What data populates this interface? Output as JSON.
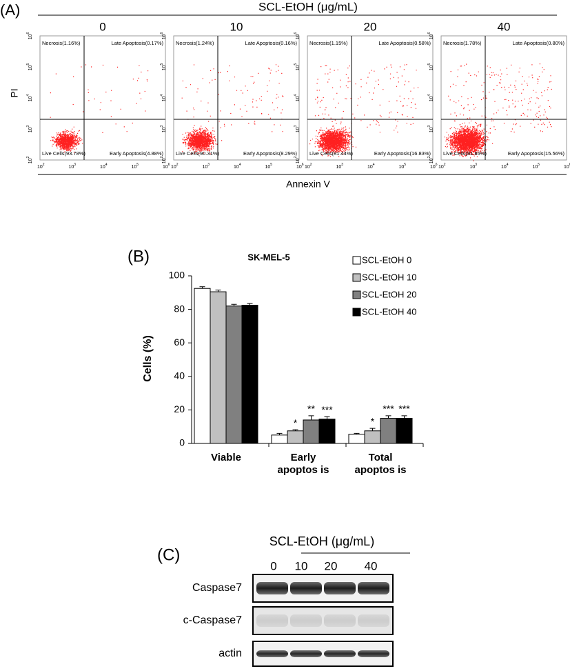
{
  "panel_a": {
    "label": "(A)",
    "header": "SCL-EtOH (μg/mL)",
    "y_axis_label": "PI",
    "x_axis_label": "Annexin V",
    "tick_base": "10",
    "tick_exponents": [
      "2",
      "3",
      "4",
      "5",
      "6"
    ],
    "plots": [
      {
        "dose": "0",
        "necrosis": "Necrosis(1.16%)",
        "late": "Late Apoptosis(0.17%)",
        "live": "Live Cells(93.78%)",
        "early": "Early Apoptosis(4.88%)"
      },
      {
        "dose": "10",
        "necrosis": "Necrosis(1.24%)",
        "late": "Late Apoptosis(0.16%)",
        "live": "Live Cells(90.31%)",
        "early": "Early Apoptosis(8.29%)"
      },
      {
        "dose": "20",
        "necrosis": "Necrosis(1.15%)",
        "late": "Late Apoptosis(0.58%)",
        "live": "Live Cells(81.44%)",
        "early": "Early Apoptosis(16.83%)"
      },
      {
        "dose": "40",
        "necrosis": "Necrosis(1.78%)",
        "late": "Late Apoptosis(0.80%)",
        "live": "Live Cells(81.86%)",
        "early": "Early Apoptosis(15.56%)"
      }
    ]
  },
  "chart_data": [
    {
      "type": "bar",
      "panel_label": "(B)",
      "title": "SK-MEL-5",
      "y_label": "Cells (%)",
      "categories": [
        "Viable",
        "Early\napoptos is",
        "Total\napoptos is"
      ],
      "ylim": [
        0,
        100
      ],
      "yticks": [
        0,
        20,
        40,
        60,
        80,
        100
      ],
      "series": [
        {
          "name": "SCL-EtOH 0",
          "color": "#ffffff",
          "values": [
            92.5,
            5,
            5.5
          ],
          "errors": [
            1,
            1,
            0.5
          ],
          "annotations": [
            null,
            null,
            null
          ]
        },
        {
          "name": "SCL-EtOH 10",
          "color": "#c0c0c0",
          "values": [
            90.5,
            7.5,
            7.5
          ],
          "errors": [
            1,
            0.7,
            1.5
          ],
          "annotations": [
            null,
            "*",
            "*"
          ]
        },
        {
          "name": "SCL-EtOH 20",
          "color": "#808080",
          "values": [
            82,
            14,
            15
          ],
          "errors": [
            1,
            2.5,
            1.5
          ],
          "annotations": [
            null,
            "**",
            "***"
          ]
        },
        {
          "name": "SCL-EtOH 40",
          "color": "#000000",
          "values": [
            82.5,
            14.5,
            15
          ],
          "errors": [
            1,
            1.5,
            1.5
          ],
          "annotations": [
            null,
            "***",
            "***"
          ]
        }
      ]
    }
  ],
  "panel_c": {
    "label": "(C)",
    "header": "SCL-EtOH (μg/mL)",
    "lanes": [
      "0",
      "10",
      "20",
      "40"
    ],
    "rows": [
      "Caspase7",
      "c-Caspase7",
      "actin"
    ]
  }
}
